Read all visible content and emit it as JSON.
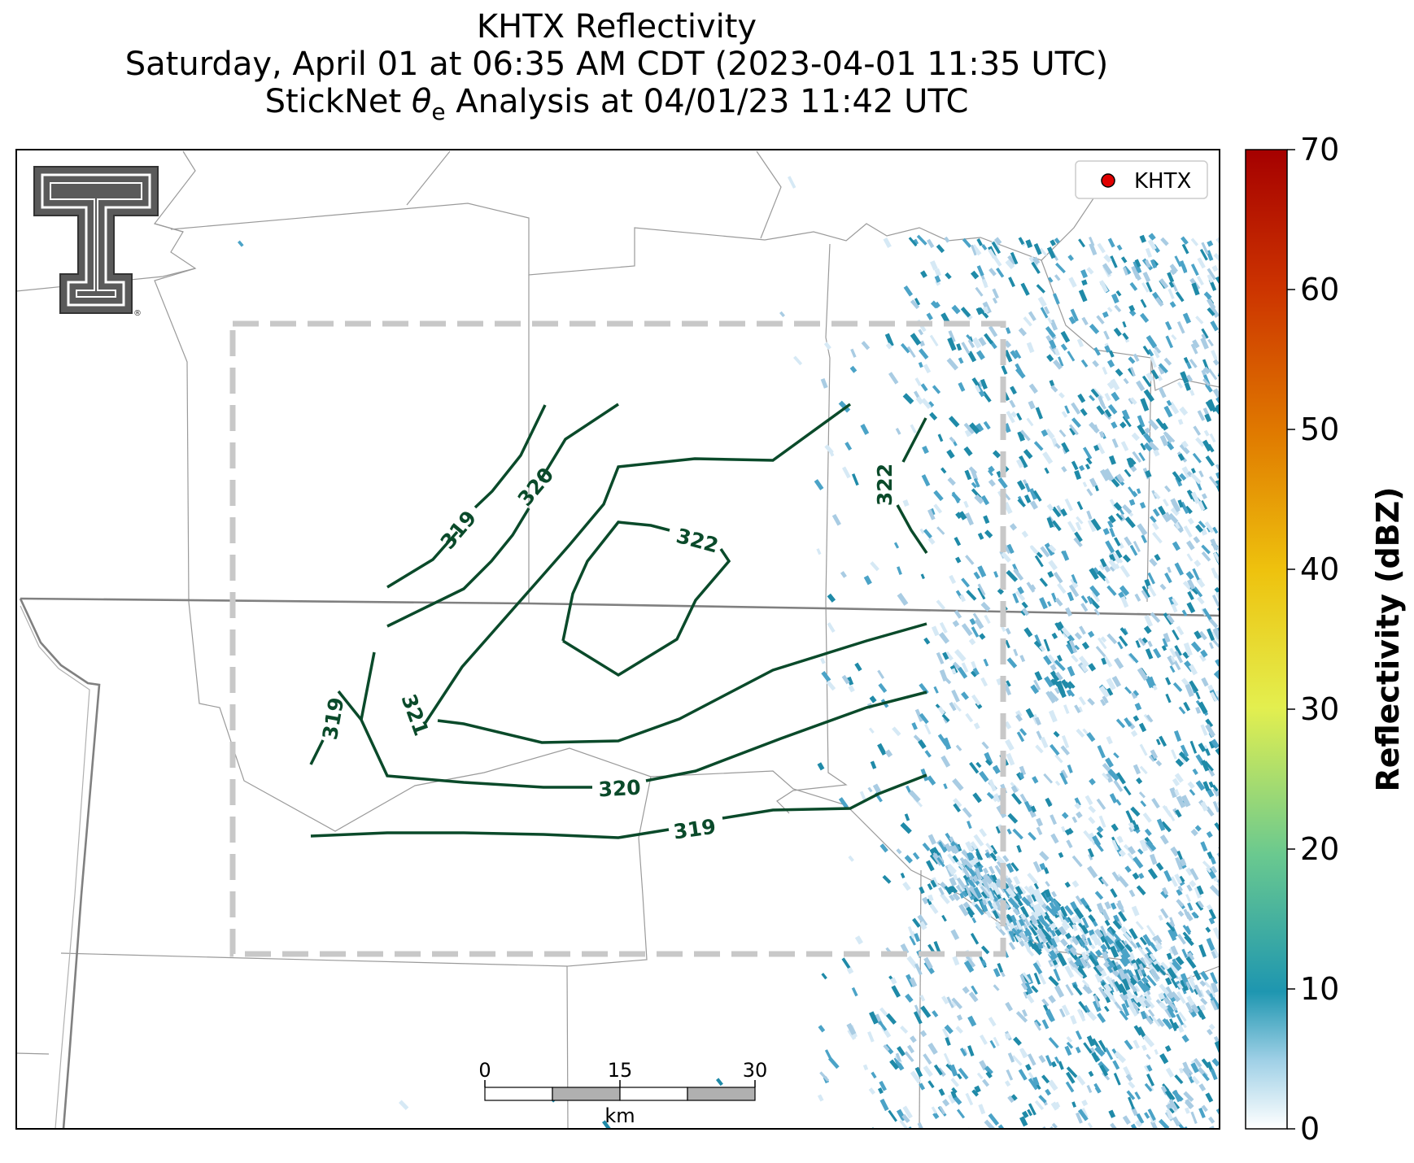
{
  "title": {
    "line1": "KHTX Reflectivity",
    "line2": "Saturday, April 01 at 06:35 AM CDT (2023-04-01 11:35 UTC)",
    "line3_prefix": "StickNet ",
    "line3_symbol": "θ",
    "line3_sub": "e",
    "line3_suffix": " Analysis at 04/01/23 11:42 UTC"
  },
  "legend": {
    "label": "KHTX",
    "marker_color": "#e00000"
  },
  "logo": {
    "name": "texas-tech-double-t-logo",
    "mark": "®"
  },
  "colorbar": {
    "label": "Reflectivity (dBZ)",
    "min": 0,
    "max": 70,
    "ticks": [
      "0",
      "10",
      "20",
      "30",
      "40",
      "50",
      "60",
      "70"
    ]
  },
  "scale_bar": {
    "ticks": [
      "0",
      "15",
      "30"
    ],
    "unit": "km"
  },
  "contours": {
    "color": "#0a4a2a",
    "labels": [
      "319",
      "320",
      "322",
      "319",
      "321",
      "322",
      "320",
      "319"
    ]
  },
  "domain_box": {
    "color": "#c8c8c8",
    "style": "dashed"
  },
  "colors": {
    "reflectivity_light": "#a9cce3",
    "reflectivity_mid": "#4ba3c7",
    "reflectivity_dark": "#1f8aa8",
    "county_lines": "#9a9a9a",
    "state_lines": "#808080"
  }
}
